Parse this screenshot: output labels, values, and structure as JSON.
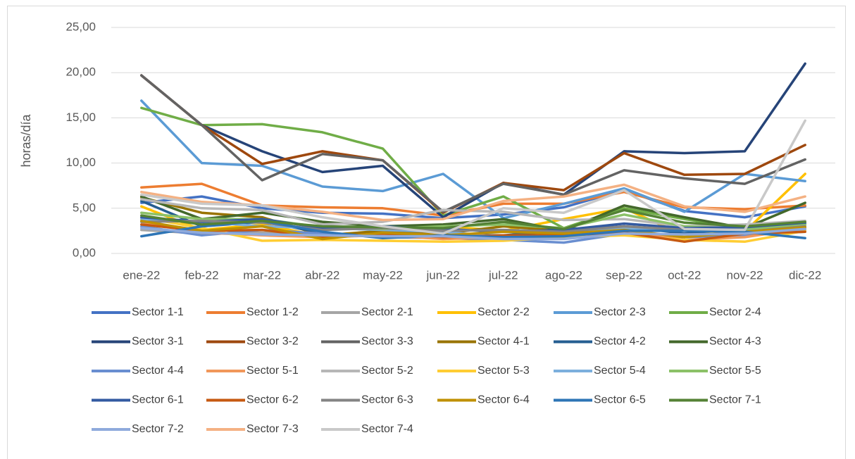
{
  "chart_data": {
    "type": "line",
    "y_label": "horas/día",
    "categories": [
      "ene-22",
      "feb-22",
      "mar-22",
      "abr-22",
      "may-22",
      "jun-22",
      "jul-22",
      "ago-22",
      "sep-22",
      "oct-22",
      "nov-22",
      "dic-22"
    ],
    "ylim": [
      0,
      25
    ],
    "yticks": [
      {
        "value": 0,
        "label": "0,00"
      },
      {
        "value": 5,
        "label": "5,00"
      },
      {
        "value": 10,
        "label": "10,00"
      },
      {
        "value": 15,
        "label": "15,00"
      },
      {
        "value": 20,
        "label": "20,00"
      },
      {
        "value": 25,
        "label": "25,00"
      }
    ],
    "grid": true,
    "legend": "bottom",
    "series": [
      {
        "name": "Sector 1-1",
        "color": "#4472C4",
        "values": [
          5.6,
          6.3,
          5.0,
          4.5,
          4.4,
          3.9,
          4.3,
          5.1,
          7.0,
          4.7,
          4.0,
          5.2
        ]
      },
      {
        "name": "Sector 1-2",
        "color": "#ED7D31",
        "values": [
          7.3,
          7.7,
          5.3,
          5.1,
          5.0,
          4.2,
          5.5,
          5.5,
          6.8,
          5.1,
          4.9,
          5.3
        ]
      },
      {
        "name": "Sector 2-1",
        "color": "#A5A5A5",
        "values": [
          2.6,
          2.2,
          2.3,
          2.0,
          2.1,
          1.8,
          1.7,
          1.9,
          2.3,
          1.9,
          2.0,
          2.4
        ]
      },
      {
        "name": "Sector 2-2",
        "color": "#FFC000",
        "values": [
          5.2,
          2.6,
          3.2,
          1.9,
          2.5,
          3.0,
          2.5,
          3.8,
          5.0,
          2.0,
          2.4,
          8.8
        ]
      },
      {
        "name": "Sector 2-3",
        "color": "#5B9BD5",
        "values": [
          16.9,
          10.0,
          9.7,
          7.4,
          6.9,
          8.8,
          3.9,
          5.5,
          7.2,
          4.6,
          8.8,
          8.0
        ]
      },
      {
        "name": "Sector 2-4",
        "color": "#70AD47",
        "values": [
          16.1,
          14.2,
          14.3,
          13.4,
          11.6,
          4.2,
          6.3,
          2.8,
          5.0,
          3.8,
          2.8,
          3.2
        ]
      },
      {
        "name": "Sector 3-1",
        "color": "#264478",
        "values": [
          19.7,
          14.2,
          11.3,
          9.0,
          9.7,
          4.0,
          7.8,
          6.5,
          11.3,
          11.1,
          11.3,
          21.0
        ]
      },
      {
        "name": "Sector 3-2",
        "color": "#9E480E",
        "values": [
          19.7,
          14.2,
          9.9,
          11.3,
          10.3,
          4.5,
          7.8,
          7.0,
          11.1,
          8.7,
          8.8,
          12.0
        ]
      },
      {
        "name": "Sector 3-3",
        "color": "#636363",
        "values": [
          19.7,
          14.2,
          8.1,
          11.0,
          10.3,
          4.6,
          7.7,
          6.5,
          9.2,
          8.3,
          7.7,
          10.4
        ]
      },
      {
        "name": "Sector 4-1",
        "color": "#997300",
        "values": [
          6.2,
          4.5,
          4.0,
          2.0,
          2.5,
          2.2,
          3.0,
          2.5,
          2.3,
          1.8,
          2.5,
          2.8
        ]
      },
      {
        "name": "Sector 4-2",
        "color": "#255E91",
        "values": [
          5.8,
          3.0,
          3.5,
          2.3,
          1.8,
          2.0,
          2.0,
          2.5,
          3.0,
          2.2,
          2.8,
          3.3
        ]
      },
      {
        "name": "Sector 4-3",
        "color": "#43682B",
        "values": [
          6.3,
          3.8,
          4.5,
          3.5,
          3.0,
          3.2,
          3.8,
          2.5,
          5.3,
          4.0,
          2.8,
          5.6
        ]
      },
      {
        "name": "Sector 4-4",
        "color": "#698ED0",
        "values": [
          3.0,
          2.0,
          2.6,
          2.2,
          1.8,
          1.7,
          1.5,
          1.2,
          2.2,
          1.8,
          2.0,
          2.6
        ]
      },
      {
        "name": "Sector 5-1",
        "color": "#F1975A",
        "values": [
          3.5,
          2.3,
          2.0,
          1.8,
          2.0,
          1.6,
          1.8,
          2.0,
          2.5,
          1.5,
          1.8,
          2.8
        ]
      },
      {
        "name": "Sector 5-2",
        "color": "#B7B7B7",
        "values": [
          6.0,
          5.0,
          4.8,
          3.2,
          3.5,
          4.8,
          4.6,
          3.7,
          3.8,
          3.0,
          3.2,
          3.6
        ]
      },
      {
        "name": "Sector 5-3",
        "color": "#FFCD33",
        "values": [
          4.0,
          2.8,
          1.4,
          1.5,
          1.4,
          1.3,
          1.4,
          1.8,
          2.0,
          1.5,
          1.3,
          2.5
        ]
      },
      {
        "name": "Sector 5-4",
        "color": "#7CAFDD",
        "values": [
          3.8,
          3.5,
          3.0,
          2.8,
          2.6,
          2.4,
          1.8,
          2.2,
          2.8,
          2.6,
          2.6,
          3.0
        ]
      },
      {
        "name": "Sector 5-5",
        "color": "#8CC168",
        "values": [
          4.5,
          3.8,
          3.8,
          2.9,
          2.7,
          3.0,
          3.2,
          2.8,
          4.3,
          3.0,
          2.7,
          3.2
        ]
      },
      {
        "name": "Sector 6-1",
        "color": "#335AA1",
        "values": [
          4.0,
          3.5,
          3.8,
          2.8,
          3.0,
          2.7,
          2.4,
          2.6,
          3.3,
          2.8,
          2.9,
          3.4
        ]
      },
      {
        "name": "Sector 6-2",
        "color": "#C65911",
        "values": [
          3.2,
          2.5,
          2.6,
          1.8,
          2.2,
          1.8,
          2.0,
          2.0,
          2.3,
          1.3,
          2.2,
          2.4
        ]
      },
      {
        "name": "Sector 6-3",
        "color": "#848484",
        "values": [
          3.5,
          3.6,
          3.4,
          2.6,
          2.8,
          2.5,
          2.6,
          2.4,
          3.0,
          2.6,
          2.4,
          3.0
        ]
      },
      {
        "name": "Sector 6-4",
        "color": "#BF9000",
        "values": [
          3.6,
          2.5,
          3.0,
          1.6,
          2.3,
          2.0,
          2.4,
          2.2,
          2.6,
          1.8,
          2.4,
          2.9
        ]
      },
      {
        "name": "Sector 6-5",
        "color": "#2E75B6",
        "values": [
          1.9,
          3.0,
          3.6,
          2.4,
          1.7,
          2.0,
          1.8,
          1.9,
          2.5,
          2.5,
          2.4,
          1.7
        ]
      },
      {
        "name": "Sector 7-1",
        "color": "#548235",
        "values": [
          4.2,
          3.2,
          3.6,
          3.0,
          2.9,
          2.8,
          3.5,
          2.7,
          4.8,
          3.4,
          3.0,
          3.5
        ]
      },
      {
        "name": "Sector 7-2",
        "color": "#8FAADC",
        "values": [
          2.8,
          2.3,
          2.1,
          2.0,
          1.9,
          1.9,
          1.6,
          1.6,
          2.2,
          2.1,
          2.2,
          2.7
        ]
      },
      {
        "name": "Sector 7-3",
        "color": "#F4B183",
        "values": [
          6.8,
          5.7,
          5.3,
          4.6,
          3.7,
          3.8,
          5.8,
          6.3,
          7.6,
          5.2,
          4.6,
          6.3
        ]
      },
      {
        "name": "Sector 7-4",
        "color": "#C9C9C9",
        "values": [
          6.5,
          5.5,
          5.3,
          4.0,
          3.0,
          2.2,
          5.0,
          4.5,
          7.0,
          2.7,
          2.6,
          14.7
        ]
      }
    ]
  }
}
